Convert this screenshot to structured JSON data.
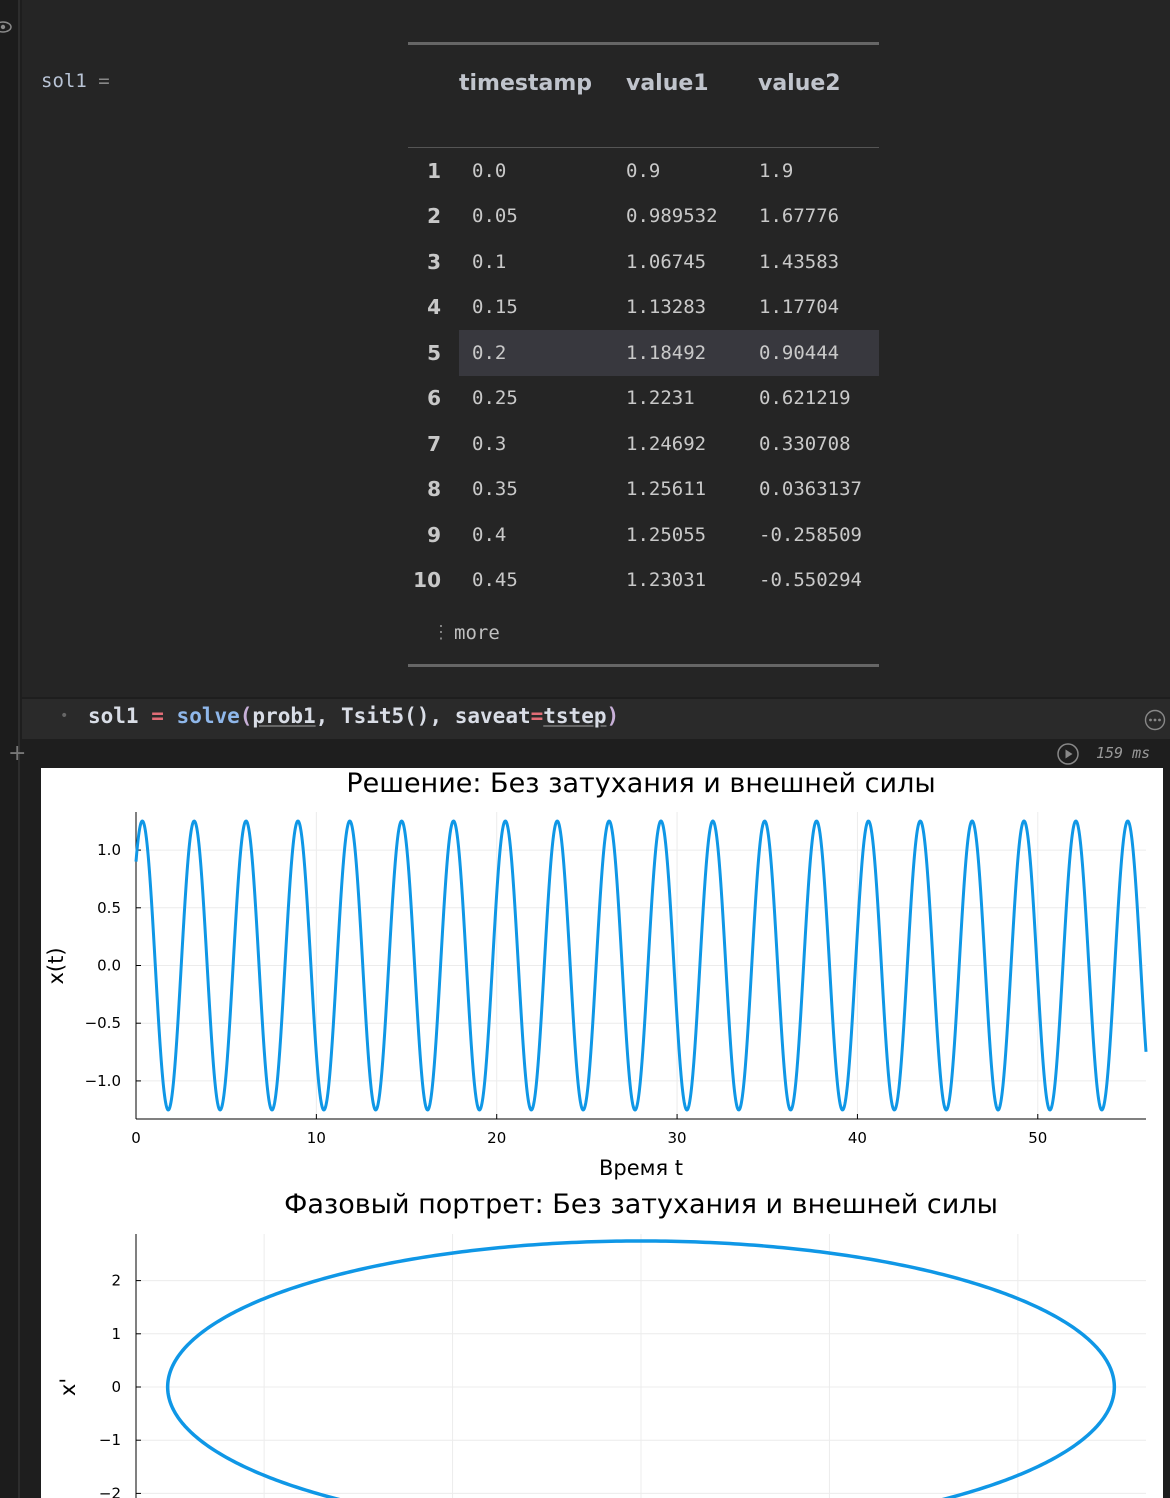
{
  "cell": {
    "variable": "sol1",
    "equals": "=",
    "code": {
      "name": "sol1",
      "op": "=",
      "fn": "solve",
      "arg1": "prob1",
      "arg2": "Tsit5()",
      "kw": "saveat",
      "kwop": "=",
      "kwval": "tstep"
    },
    "timing": "159 ms"
  },
  "table": {
    "columns": [
      "timestamp",
      "value1",
      "value2"
    ],
    "rows": [
      {
        "idx": "1",
        "timestamp": "0.0",
        "value1": "0.9",
        "value2": "1.9"
      },
      {
        "idx": "2",
        "timestamp": "0.05",
        "value1": "0.989532",
        "value2": "1.67776"
      },
      {
        "idx": "3",
        "timestamp": "0.1",
        "value1": "1.06745",
        "value2": "1.43583"
      },
      {
        "idx": "4",
        "timestamp": "0.15",
        "value1": "1.13283",
        "value2": "1.17704"
      },
      {
        "idx": "5",
        "timestamp": "0.2",
        "value1": "1.18492",
        "value2": "0.90444"
      },
      {
        "idx": "6",
        "timestamp": "0.25",
        "value1": "1.2231",
        "value2": "0.621219"
      },
      {
        "idx": "7",
        "timestamp": "0.3",
        "value1": "1.24692",
        "value2": "0.330708"
      },
      {
        "idx": "8",
        "timestamp": "0.35",
        "value1": "1.25611",
        "value2": "0.0363137"
      },
      {
        "idx": "9",
        "timestamp": "0.4",
        "value1": "1.25055",
        "value2": "-0.258509"
      },
      {
        "idx": "10",
        "timestamp": "0.45",
        "value1": "1.23031",
        "value2": "-0.550294"
      }
    ],
    "more_label": "more",
    "more_icon": "⋮"
  },
  "chart_data": [
    {
      "type": "line",
      "title": "Решение: Без затухания и внешней силы",
      "xlabel": "Время t",
      "ylabel": "x(t)",
      "xlim": [
        0,
        56
      ],
      "ylim": [
        -1.33,
        1.33
      ],
      "xticks": [
        0,
        10,
        20,
        30,
        40,
        50
      ],
      "xtick_labels": [
        "0",
        "10",
        "20",
        "30",
        "40",
        "50"
      ],
      "yticks": [
        -1.0,
        -0.5,
        0.0,
        0.5,
        1.0
      ],
      "ytick_labels": [
        "−1.0",
        "−0.5",
        "0.0",
        "0.5",
        "1.0"
      ],
      "grid": true,
      "color": "#0f97e6",
      "series": [
        {
          "function": "x(t) = 0.9·cos(ωt) + (1.9/ω)·sin(ωt)",
          "omega": 2.185,
          "x0": 0.9,
          "v0": 1.9,
          "t_end": 56
        }
      ]
    },
    {
      "type": "line",
      "title": "Фазовый портрет: Без затухания и внешней силы",
      "ylabel": "x'",
      "xlim": [
        -1.34,
        1.34
      ],
      "ylim": [
        -2.9,
        2.9
      ],
      "yticks": [
        -2,
        -1,
        0,
        1,
        2
      ],
      "ytick_labels": [
        "−2",
        "−1",
        "0",
        "1",
        "2"
      ],
      "grid": true,
      "color": "#0f97e6",
      "series": [
        {
          "function": "ellipse x = A·cos θ, x' = Aω·sin θ",
          "amplitude": 1.256,
          "amplitude_v": 2.745
        }
      ]
    }
  ]
}
